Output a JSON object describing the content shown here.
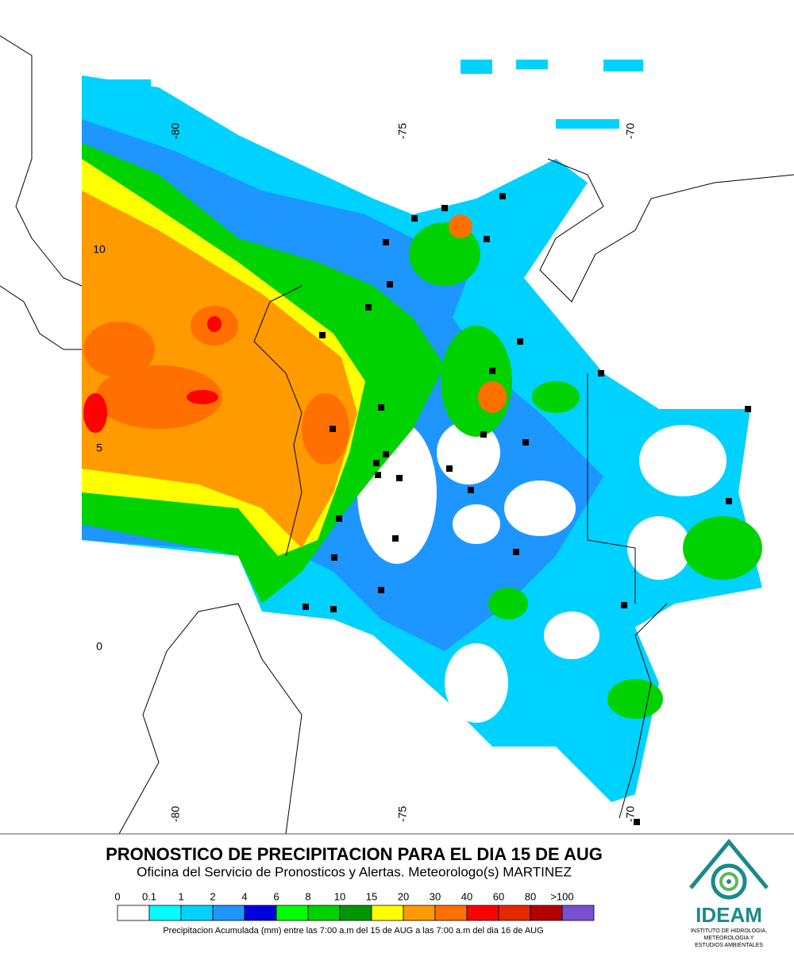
{
  "map": {
    "lon_labels": [
      "-80",
      "-75",
      "-70"
    ],
    "lat_labels": [
      "10",
      "5",
      "0"
    ]
  },
  "title": "PRONOSTICO DE PRECIPITACION PARA EL DIA 15 DE AUG",
  "subtitle": "Oficina del Servicio de Pronosticos y Alertas. Meteorologo(s) MARTINEZ",
  "legend": {
    "labels": [
      "0",
      "0.1",
      "1",
      "2",
      "4",
      "6",
      "8",
      "10",
      "15",
      "20",
      "30",
      "40",
      "60",
      "80",
      ">100"
    ],
    "colors": [
      "#ffffff",
      "#00ffff",
      "#00d2ff",
      "#1e96ff",
      "#0000dc",
      "#00ff00",
      "#00d200",
      "#009600",
      "#ffff00",
      "#ff9a00",
      "#ff7000",
      "#ff0000",
      "#e62800",
      "#b40000",
      "#7850d2"
    ]
  },
  "caption": "Precipitacion Acumulada (mm) entre las 7:00 a.m del 15 de AUG a las 7:00 a.m del dia 16 de AUG",
  "logo": {
    "name": "IDEAM",
    "line1": "INSTITUTO DE HIDROLOGIA,",
    "line2": "METEOROLOGIA Y",
    "line3": "ESTUDIOS AMBIENTALES"
  }
}
